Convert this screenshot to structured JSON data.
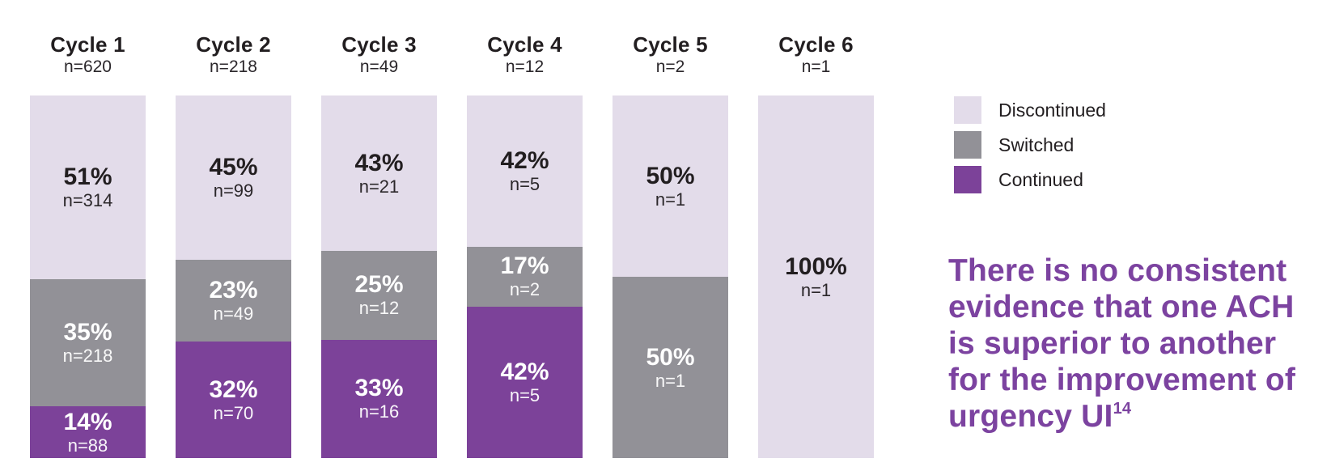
{
  "chart_data": {
    "type": "bar",
    "subtype": "stacked-100-percent-vertical",
    "title": "",
    "xlabel": "",
    "ylabel": "",
    "grid": false,
    "legend_position": "right",
    "categories": [
      "Cycle 1",
      "Cycle 2",
      "Cycle 3",
      "Cycle 4",
      "Cycle 5",
      "Cycle 6"
    ],
    "series_order": [
      "Discontinued",
      "Switched",
      "Continued"
    ],
    "series_colors": {
      "Discontinued": "#e3dcea",
      "Switched": "#929197",
      "Continued": "#7c4299"
    },
    "columns": [
      {
        "label": "Cycle 1",
        "n_label": "n=620",
        "total": 620,
        "segments": [
          {
            "category": "Discontinued",
            "percent": 51,
            "percent_label": "51%",
            "count": 314,
            "n_label": "n=314",
            "fraction": 0.5065
          },
          {
            "category": "Switched",
            "percent": 35,
            "percent_label": "35%",
            "count": 218,
            "n_label": "n=218",
            "fraction": 0.3516
          },
          {
            "category": "Continued",
            "percent": 14,
            "percent_label": "14%",
            "count": 88,
            "n_label": "n=88",
            "fraction": 0.1419
          }
        ]
      },
      {
        "label": "Cycle 2",
        "n_label": "n=218",
        "total": 218,
        "segments": [
          {
            "category": "Discontinued",
            "percent": 45,
            "percent_label": "45%",
            "count": 99,
            "n_label": "n=99",
            "fraction": 0.4541
          },
          {
            "category": "Switched",
            "percent": 23,
            "percent_label": "23%",
            "count": 49,
            "n_label": "n=49",
            "fraction": 0.2248
          },
          {
            "category": "Continued",
            "percent": 32,
            "percent_label": "32%",
            "count": 70,
            "n_label": "n=70",
            "fraction": 0.3211
          }
        ]
      },
      {
        "label": "Cycle 3",
        "n_label": "n=49",
        "total": 49,
        "segments": [
          {
            "category": "Discontinued",
            "percent": 43,
            "percent_label": "43%",
            "count": 21,
            "n_label": "n=21",
            "fraction": 0.4286
          },
          {
            "category": "Switched",
            "percent": 25,
            "percent_label": "25%",
            "count": 12,
            "n_label": "n=12",
            "fraction": 0.2449
          },
          {
            "category": "Continued",
            "percent": 33,
            "percent_label": "33%",
            "count": 16,
            "n_label": "n=16",
            "fraction": 0.3265
          }
        ]
      },
      {
        "label": "Cycle 4",
        "n_label": "n=12",
        "total": 12,
        "segments": [
          {
            "category": "Discontinued",
            "percent": 42,
            "percent_label": "42%",
            "count": 5,
            "n_label": "n=5",
            "fraction": 0.4167
          },
          {
            "category": "Switched",
            "percent": 17,
            "percent_label": "17%",
            "count": 2,
            "n_label": "n=2",
            "fraction": 0.1666
          },
          {
            "category": "Continued",
            "percent": 42,
            "percent_label": "42%",
            "count": 5,
            "n_label": "n=5",
            "fraction": 0.4167
          }
        ]
      },
      {
        "label": "Cycle 5",
        "n_label": "n=2",
        "total": 2,
        "segments": [
          {
            "category": "Discontinued",
            "percent": 50,
            "percent_label": "50%",
            "count": 1,
            "n_label": "n=1",
            "fraction": 0.5
          },
          {
            "category": "Switched",
            "percent": 50,
            "percent_label": "50%",
            "count": 1,
            "n_label": "n=1",
            "fraction": 0.5
          }
        ]
      },
      {
        "label": "Cycle 6",
        "n_label": "n=1",
        "total": 1,
        "segments": [
          {
            "category": "Discontinued",
            "percent": 100,
            "percent_label": "100%",
            "count": 1,
            "n_label": "n=1",
            "fraction": 1.0
          }
        ]
      }
    ]
  },
  "legend": {
    "entries": [
      {
        "label": "Discontinued",
        "color": "#e3dcea"
      },
      {
        "label": "Switched",
        "color": "#929197"
      },
      {
        "label": "Continued",
        "color": "#7c4299"
      }
    ]
  },
  "headline": {
    "lines": [
      "There is no consistent",
      "evidence that one ACH",
      "is superior to another",
      "for the improvement of"
    ],
    "last_line_text": "urgency UI",
    "footnote_marker": "14",
    "color": "#7c43a0"
  },
  "colors": {
    "background": "#ffffff",
    "text_dark": "#221e20",
    "text_light": "#ffffff"
  }
}
